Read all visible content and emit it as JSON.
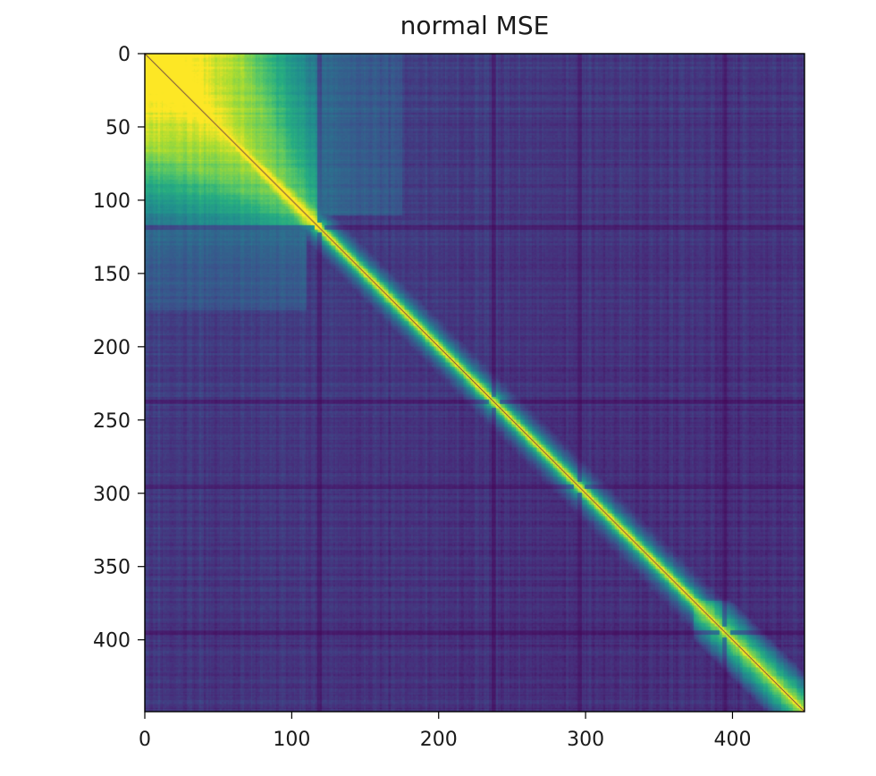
{
  "chart_data": {
    "type": "heatmap",
    "title": "normal MSE",
    "xlabel": "",
    "ylabel": "",
    "n": 449,
    "xlim": [
      0,
      449
    ],
    "ylim": [
      449,
      0
    ],
    "x_ticks": [
      0,
      100,
      200,
      300,
      400
    ],
    "y_ticks": [
      0,
      50,
      100,
      150,
      200,
      250,
      300,
      350,
      400
    ],
    "colormap": "viridis",
    "colors": {
      "low": "#440154",
      "mid": "#21918c",
      "high": "#fde725",
      "diagonal": "#3b0f4f"
    },
    "features": {
      "block_end": 120,
      "dark_lines": [
        118,
        237,
        295,
        394
      ],
      "bright_cross_points": [
        237,
        295,
        394
      ],
      "late_cluster_start": 372
    },
    "grid": false,
    "legend": "none"
  }
}
